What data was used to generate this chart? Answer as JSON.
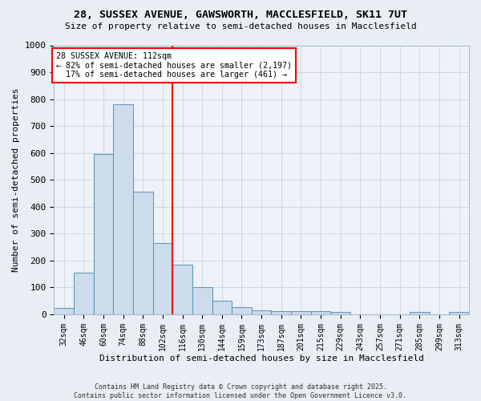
{
  "title_line1": "28, SUSSEX AVENUE, GAWSWORTH, MACCLESFIELD, SK11 7UT",
  "title_line2": "Size of property relative to semi-detached houses in Macclesfield",
  "xlabel": "Distribution of semi-detached houses by size in Macclesfield",
  "ylabel": "Number of semi-detached properties",
  "categories": [
    "32sqm",
    "46sqm",
    "60sqm",
    "74sqm",
    "88sqm",
    "102sqm",
    "116sqm",
    "130sqm",
    "144sqm",
    "159sqm",
    "173sqm",
    "187sqm",
    "201sqm",
    "215sqm",
    "229sqm",
    "243sqm",
    "257sqm",
    "271sqm",
    "285sqm",
    "299sqm",
    "313sqm"
  ],
  "values": [
    25,
    155,
    595,
    780,
    455,
    265,
    185,
    100,
    50,
    28,
    15,
    12,
    12,
    12,
    10,
    0,
    0,
    0,
    8,
    0,
    10
  ],
  "bar_color": "#ccdcec",
  "bar_edge_color": "#6699bb",
  "property_label": "28 SUSSEX AVENUE: 112sqm",
  "pct_smaller": 82,
  "count_smaller": 2197,
  "pct_larger": 17,
  "count_larger": 461,
  "vline_color": "red",
  "vline_x_index": 5.5,
  "ylim": [
    0,
    1000
  ],
  "yticks": [
    0,
    100,
    200,
    300,
    400,
    500,
    600,
    700,
    800,
    900,
    1000
  ],
  "footer_line1": "Contains HM Land Registry data © Crown copyright and database right 2025.",
  "footer_line2": "Contains public sector information licensed under the Open Government Licence v3.0.",
  "bg_color": "#e8eef4",
  "plot_bg_color": "#eef2f8"
}
